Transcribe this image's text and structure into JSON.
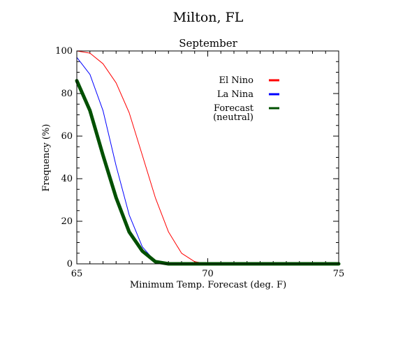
{
  "chart_data": {
    "type": "line",
    "title": "Milton, FL",
    "subtitle": "September",
    "xlabel": "Minimum Temp. Forecast (deg. F)",
    "ylabel": "Frequency (%)",
    "xlim": [
      65,
      75
    ],
    "ylim": [
      0,
      100
    ],
    "x_ticks": [
      "65",
      "70",
      "75"
    ],
    "y_ticks": [
      "0",
      "20",
      "40",
      "60",
      "80",
      "100"
    ],
    "grid": false,
    "legend_placement": "top-right",
    "series": [
      {
        "name": "El Nino",
        "color": "#ff0000",
        "x": [
          65,
          65.5,
          66,
          66.5,
          67,
          67.5,
          68,
          68.5,
          69,
          69.5,
          70,
          70.5,
          71,
          72,
          73,
          74,
          75
        ],
        "y": [
          100,
          99,
          94,
          85,
          71,
          51,
          31,
          15,
          5,
          1,
          0,
          0,
          0,
          0,
          0,
          0,
          0
        ]
      },
      {
        "name": "La Nina",
        "color": "#0000ff",
        "x": [
          65,
          65.5,
          66,
          66.5,
          67,
          67.5,
          68,
          68.5,
          69,
          70,
          71,
          72,
          73,
          74,
          75
        ],
        "y": [
          97,
          89,
          72,
          46,
          23,
          8,
          1,
          0,
          0,
          0,
          0,
          0,
          0,
          0,
          0
        ]
      },
      {
        "name": "Forecast",
        "name_line2": "(neutral)",
        "color": "#005000",
        "x": [
          65,
          65.5,
          66,
          66.5,
          67,
          67.5,
          68,
          68.5,
          69,
          70,
          71,
          72,
          73,
          74,
          75
        ],
        "y": [
          86,
          72,
          51,
          31,
          15,
          6,
          1,
          0,
          0,
          0,
          0,
          0,
          0,
          0,
          0
        ]
      }
    ]
  }
}
